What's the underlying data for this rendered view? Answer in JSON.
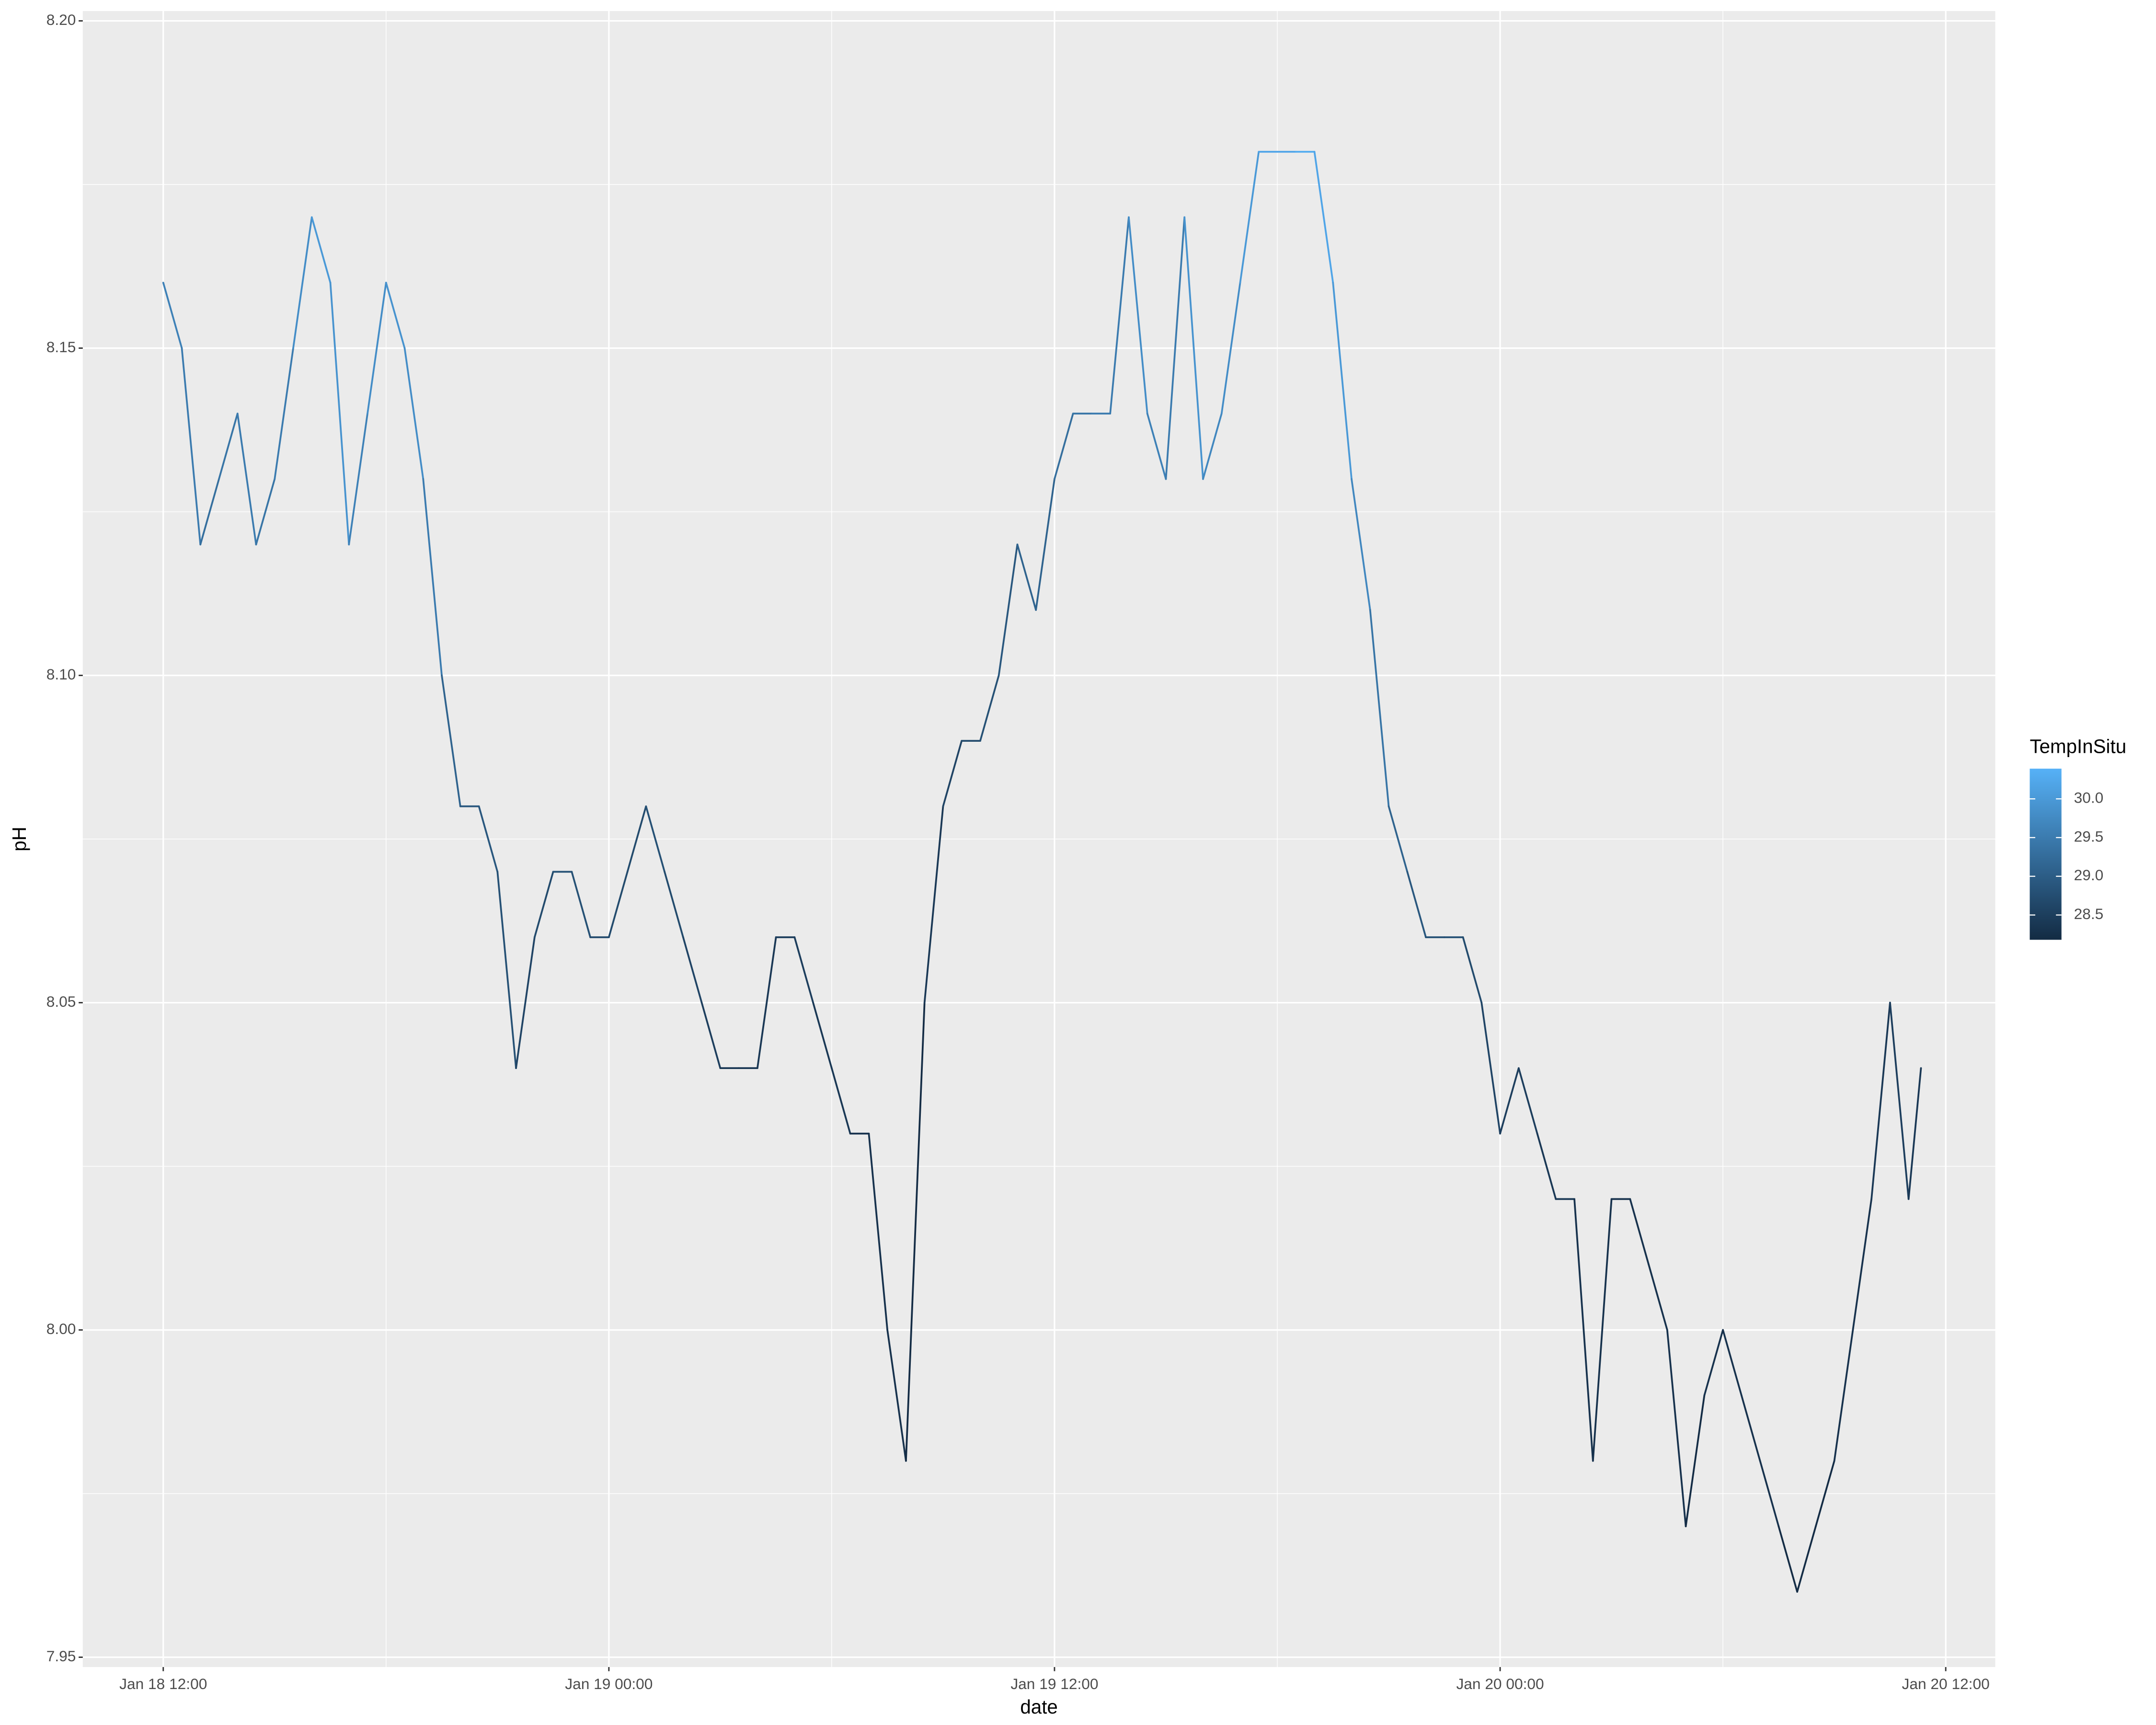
{
  "chart_data": {
    "type": "line",
    "xlabel": "date",
    "ylabel": "pH",
    "x": [
      "Jan 18 12:00",
      "Jan 18 12:30",
      "Jan 18 13:00",
      "Jan 18 13:30",
      "Jan 18 14:00",
      "Jan 18 14:30",
      "Jan 18 15:00",
      "Jan 18 15:30",
      "Jan 18 16:00",
      "Jan 18 16:30",
      "Jan 18 17:00",
      "Jan 18 17:30",
      "Jan 18 18:00",
      "Jan 18 18:30",
      "Jan 18 19:00",
      "Jan 18 19:30",
      "Jan 18 20:00",
      "Jan 18 20:30",
      "Jan 18 21:00",
      "Jan 18 21:30",
      "Jan 18 22:00",
      "Jan 18 22:30",
      "Jan 18 23:00",
      "Jan 18 23:30",
      "Jan 19 00:00",
      "Jan 19 00:30",
      "Jan 19 01:00",
      "Jan 19 01:30",
      "Jan 19 02:00",
      "Jan 19 02:30",
      "Jan 19 03:00",
      "Jan 19 03:30",
      "Jan 19 04:00",
      "Jan 19 04:30",
      "Jan 19 05:00",
      "Jan 19 05:30",
      "Jan 19 06:00",
      "Jan 19 06:30",
      "Jan 19 07:00",
      "Jan 19 07:30",
      "Jan 19 08:00",
      "Jan 19 08:30",
      "Jan 19 09:00",
      "Jan 19 09:30",
      "Jan 19 10:00",
      "Jan 19 10:30",
      "Jan 19 11:00",
      "Jan 19 11:30",
      "Jan 19 12:00",
      "Jan 19 12:30",
      "Jan 19 13:00",
      "Jan 19 13:30",
      "Jan 19 14:00",
      "Jan 19 14:30",
      "Jan 19 15:00",
      "Jan 19 15:30",
      "Jan 19 16:00",
      "Jan 19 16:30",
      "Jan 19 17:00",
      "Jan 19 17:30",
      "Jan 19 18:00",
      "Jan 19 18:30",
      "Jan 19 19:00",
      "Jan 19 19:30",
      "Jan 19 20:00",
      "Jan 19 20:30",
      "Jan 19 21:00",
      "Jan 19 21:30",
      "Jan 19 22:00",
      "Jan 19 22:30",
      "Jan 19 23:00",
      "Jan 19 23:30",
      "Jan 20 00:00",
      "Jan 20 00:30",
      "Jan 20 01:00",
      "Jan 20 01:30",
      "Jan 20 02:00",
      "Jan 20 02:30",
      "Jan 20 03:00",
      "Jan 20 03:30",
      "Jan 20 04:00",
      "Jan 20 04:30",
      "Jan 20 05:00",
      "Jan 20 05:30",
      "Jan 20 06:00",
      "Jan 20 06:30",
      "Jan 20 07:00",
      "Jan 20 07:30",
      "Jan 20 08:00",
      "Jan 20 08:30",
      "Jan 20 09:00",
      "Jan 20 09:30",
      "Jan 20 10:00",
      "Jan 20 10:30",
      "Jan 20 11:00",
      "Jan 20 11:20"
    ],
    "series": [
      {
        "values": [
          8.16,
          8.15,
          8.12,
          8.13,
          8.14,
          8.12,
          8.13,
          8.15,
          8.17,
          8.16,
          8.12,
          8.14,
          8.16,
          8.15,
          8.13,
          8.1,
          8.08,
          8.08,
          8.07,
          8.04,
          8.06,
          8.07,
          8.07,
          8.06,
          8.06,
          8.07,
          8.08,
          8.07,
          8.06,
          8.05,
          8.04,
          8.04,
          8.04,
          8.06,
          8.06,
          8.05,
          8.04,
          8.03,
          8.03,
          8.0,
          7.98,
          8.05,
          8.08,
          8.09,
          8.09,
          8.1,
          8.12,
          8.11,
          8.13,
          8.14,
          8.14,
          8.14,
          8.17,
          8.14,
          8.13,
          8.17,
          8.13,
          8.14,
          8.16,
          8.18,
          8.18,
          8.18,
          8.18,
          8.16,
          8.13,
          8.11,
          8.08,
          8.07,
          8.06,
          8.06,
          8.06,
          8.05,
          8.03,
          8.04,
          8.03,
          8.02,
          8.02,
          7.98,
          8.02,
          8.02,
          8.01,
          8.0,
          7.97,
          7.99,
          8.0,
          7.99,
          7.98,
          7.97,
          7.96,
          7.97,
          7.98,
          8.0,
          8.02,
          8.05,
          8.02,
          8.04
        ],
        "color_values": [
          29.6,
          29.5,
          29.3,
          29.4,
          29.5,
          29.4,
          29.5,
          29.8,
          30.0,
          29.9,
          29.6,
          29.8,
          29.9,
          29.8,
          29.5,
          29.1,
          28.9,
          28.9,
          28.8,
          28.6,
          28.7,
          28.8,
          28.8,
          28.7,
          28.7,
          28.7,
          28.8,
          28.7,
          28.6,
          28.5,
          28.4,
          28.4,
          28.4,
          28.5,
          28.5,
          28.4,
          28.4,
          28.3,
          28.3,
          28.3,
          28.2,
          28.4,
          28.6,
          28.7,
          28.8,
          28.9,
          29.1,
          29.1,
          29.3,
          29.4,
          29.5,
          29.5,
          29.8,
          29.6,
          29.5,
          29.9,
          29.7,
          29.8,
          30.0,
          30.2,
          30.2,
          30.3,
          30.2,
          30.0,
          29.7,
          29.4,
          29.1,
          28.9,
          28.8,
          28.8,
          28.7,
          28.6,
          28.5,
          28.5,
          28.4,
          28.4,
          28.3,
          28.3,
          28.3,
          28.3,
          28.3,
          28.3,
          28.2,
          28.3,
          28.3,
          28.3,
          28.3,
          28.2,
          28.2,
          28.2,
          28.3,
          28.3,
          28.4,
          28.5,
          28.4,
          28.5
        ]
      }
    ],
    "xlim": [
      "Jan 18 09:50",
      "Jan 20 13:20"
    ],
    "xticks": [
      "Jan 18 12:00",
      "Jan 19 00:00",
      "Jan 19 12:00",
      "Jan 20 00:00",
      "Jan 20 12:00"
    ],
    "ylim": [
      7.9485,
      8.2015
    ],
    "yticks": [
      7.95,
      {
        "value": 8.0,
        "label": "8.00"
      },
      8.05,
      {
        "value": 8.1,
        "label": "8.10"
      },
      8.15,
      {
        "value": 8.2,
        "label": "8.20"
      }
    ],
    "grid": true,
    "color_scale": {
      "title": "TempInSitu",
      "lim": [
        28.18,
        30.39
      ],
      "ticks": [
        28.5,
        {
          "value": 29.0,
          "label": "29.0"
        },
        29.5,
        {
          "value": 30.0,
          "label": "30.0"
        }
      ],
      "colors": [
        "#132B43",
        "#56B1F7"
      ]
    }
  }
}
